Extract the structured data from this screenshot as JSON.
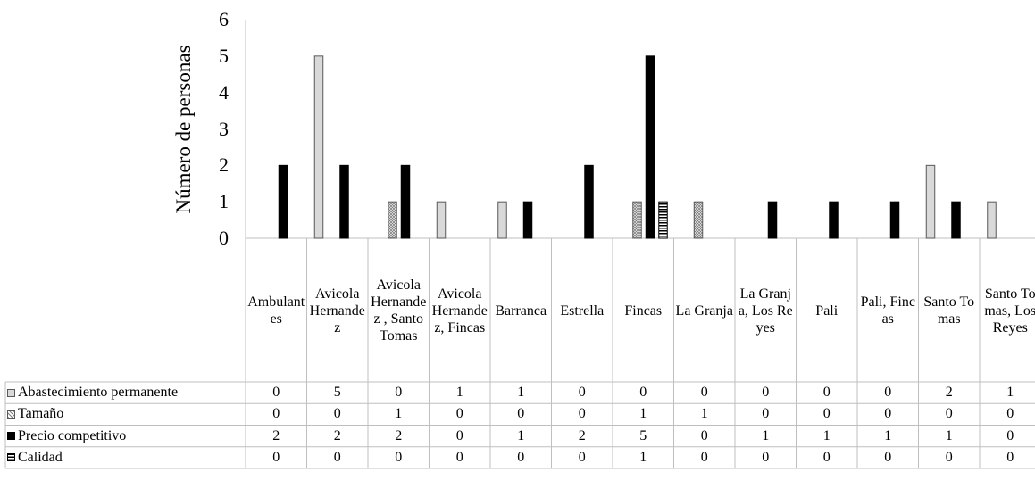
{
  "chart_data": {
    "type": "bar",
    "ylabel": "Número de personas",
    "ylim": [
      0,
      6
    ],
    "yticks": [
      "0",
      "1",
      "2",
      "3",
      "4",
      "5",
      "6"
    ],
    "categories": [
      "Ambulantes",
      "Avicola Hernandez",
      "Avicola Hernandez , Santo Tomas",
      "Avicola Hernandez, Fincas",
      "Barranca",
      "Estrella",
      "Fincas",
      "La Granja",
      "La Granja, Los Reyes",
      "Pali",
      "Pali, Fincas",
      "Santo Tomas",
      "Santo Tomas, Los Reyes"
    ],
    "legend_placement": "data-table",
    "series": [
      {
        "name": "Abastecimiento permanente",
        "pattern": "light-gray",
        "color": "#d9d9d9",
        "values": [
          0,
          5,
          0,
          1,
          1,
          0,
          0,
          0,
          0,
          0,
          0,
          2,
          1
        ]
      },
      {
        "name": "Tamaño",
        "pattern": "crosshatch",
        "color": "#bfbfbf",
        "values": [
          0,
          0,
          1,
          0,
          0,
          0,
          1,
          1,
          0,
          0,
          0,
          0,
          0
        ]
      },
      {
        "name": "Precio competitivo",
        "pattern": "solid-black",
        "color": "#000000",
        "values": [
          2,
          2,
          2,
          0,
          1,
          2,
          5,
          0,
          1,
          1,
          1,
          1,
          0
        ]
      },
      {
        "name": "Calidad",
        "pattern": "horizontal-lines",
        "color": "#ffffff",
        "values": [
          0,
          0,
          0,
          0,
          0,
          0,
          1,
          0,
          0,
          0,
          0,
          0,
          0
        ]
      }
    ]
  }
}
